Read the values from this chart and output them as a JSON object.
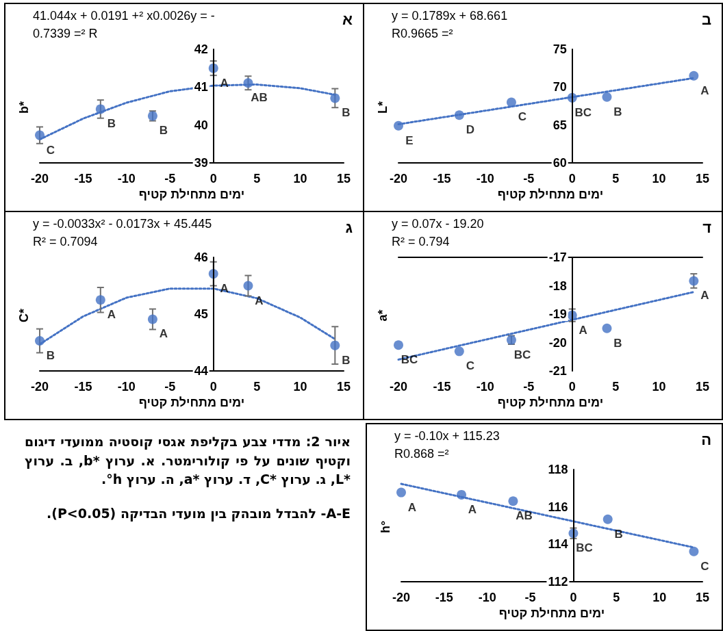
{
  "chart_data": [
    {
      "type": "scatter",
      "title": "א",
      "xlabel": "ימים מתחילת קטיף",
      "ylabel": "b*",
      "x": [
        -20,
        -13,
        -7,
        0,
        4,
        14
      ],
      "xlim": [
        -20,
        15
      ],
      "xticks": [
        -20,
        -15,
        -10,
        -5,
        0,
        5,
        10,
        15
      ],
      "ylim": [
        39,
        42
      ],
      "yticks": [
        39,
        40,
        41,
        42
      ],
      "marker": "circle",
      "annotations": [
        "41.044x + 0.0191 +² x0.0026y = -",
        "0.7339 =² R"
      ],
      "series": [
        {
          "type": "scatter",
          "color": "#4472c4",
          "values": [
            39.73,
            40.42,
            40.24,
            41.5,
            41.11,
            40.71
          ],
          "errors": [
            0.22,
            0.24,
            0.13,
            0.19,
            0.18,
            0.25
          ],
          "value_labels": [
            "C",
            "B",
            "B",
            "A",
            "AB",
            "B"
          ]
        },
        {
          "type": "line",
          "color": "#4472c4",
          "marker": "none",
          "line_style": "dotted",
          "x": [
            -20,
            -15,
            -10,
            -5,
            0,
            5,
            10,
            14
          ],
          "values": [
            39.62,
            40.17,
            40.59,
            40.89,
            41.04,
            41.07,
            40.97,
            40.8
          ]
        }
      ]
    },
    {
      "type": "scatter",
      "title": "ב",
      "xlabel": "ימים מתחילת קטיף",
      "ylabel": "L*",
      "x": [
        -20,
        -13,
        -7,
        0,
        4,
        14
      ],
      "xlim": [
        -20,
        15
      ],
      "xticks": [
        -20,
        -15,
        -10,
        -5,
        0,
        5,
        10,
        15
      ],
      "ylim": [
        60,
        75
      ],
      "yticks": [
        60,
        65,
        70,
        75
      ],
      "marker": "circle",
      "annotations": [
        "y = 0.1789x + 68.661",
        "R0.9665 =²"
      ],
      "series": [
        {
          "type": "scatter",
          "color": "#4472c4",
          "values": [
            64.9,
            66.3,
            68.0,
            68.6,
            68.7,
            71.5
          ],
          "value_labels": [
            "E",
            "D",
            "C",
            "BC",
            "B",
            "A"
          ]
        },
        {
          "type": "line",
          "color": "#4472c4",
          "marker": "none",
          "line_style": "dotted",
          "x": [
            -20,
            14
          ],
          "values": [
            65.1,
            71.2
          ]
        }
      ]
    },
    {
      "type": "scatter",
      "title": "ג",
      "xlabel": "ימים מתחילת קטיף",
      "ylabel": "C*",
      "x": [
        -20,
        -13,
        -7,
        0,
        4,
        14
      ],
      "xlim": [
        -20,
        15
      ],
      "xticks": [
        -20,
        -15,
        -10,
        -5,
        0,
        5,
        10,
        15
      ],
      "ylim": [
        44,
        46
      ],
      "yticks": [
        44,
        45,
        46
      ],
      "marker": "circle",
      "annotations": [
        "y = -0.0033x² - 0.0173x + 45.445",
        "R² = 0.7094"
      ],
      "series": [
        {
          "type": "scatter",
          "color": "#4472c4",
          "values": [
            44.53,
            45.25,
            44.91,
            45.71,
            45.5,
            44.45
          ],
          "errors": [
            0.21,
            0.22,
            0.18,
            0.21,
            0.18,
            0.33
          ],
          "value_labels": [
            "B",
            "A",
            "A",
            "A",
            "A",
            "B"
          ]
        },
        {
          "type": "line",
          "color": "#4472c4",
          "marker": "none",
          "line_style": "dotted",
          "x": [
            -20,
            -15,
            -10,
            -5,
            0,
            5,
            10,
            14
          ],
          "values": [
            44.47,
            44.96,
            45.29,
            45.45,
            45.45,
            45.28,
            44.94,
            44.56
          ]
        }
      ]
    },
    {
      "type": "scatter",
      "title": "ד",
      "xlabel": "ימים מתחילת קטיף",
      "ylabel": "a*",
      "x": [
        -20,
        -13,
        -7,
        0,
        4,
        14
      ],
      "xlim": [
        -20,
        15
      ],
      "xticks": [
        -20,
        -15,
        -10,
        -5,
        0,
        5,
        10,
        15
      ],
      "ylim": [
        -21,
        -17
      ],
      "yticks": [
        -21,
        -20,
        -19,
        -18,
        -17
      ],
      "marker": "circle",
      "annotations": [
        "y = 0.07x - 19.20",
        "R² = 0.794"
      ],
      "series": [
        {
          "type": "scatter",
          "color": "#4472c4",
          "values": [
            -20.09,
            -20.31,
            -19.91,
            -19.04,
            -19.5,
            -17.83
          ],
          "errors": [
            null,
            null,
            0.15,
            0.22,
            null,
            0.25
          ],
          "value_labels": [
            "BC",
            "C",
            "BC",
            "A",
            "B",
            "A"
          ]
        },
        {
          "type": "line",
          "color": "#4472c4",
          "marker": "none",
          "line_style": "dotted",
          "x": [
            -20,
            14
          ],
          "values": [
            -20.6,
            -18.22
          ]
        }
      ]
    },
    {
      "type": "scatter",
      "title": "ה",
      "xlabel": "ימים מתחילת קטיף",
      "ylabel": "h°",
      "x": [
        -20,
        -13,
        -7,
        0,
        4,
        14
      ],
      "xlim": [
        -20,
        15
      ],
      "xticks": [
        -20,
        -15,
        -10,
        -5,
        0,
        5,
        10,
        15
      ],
      "ylim": [
        112,
        118
      ],
      "yticks": [
        112,
        114,
        116,
        118
      ],
      "marker": "circle",
      "annotations": [
        "y = -0.10x + 115.23",
        "R0.868 =²"
      ],
      "series": [
        {
          "type": "scatter",
          "color": "#4472c4",
          "values": [
            116.77,
            116.65,
            116.31,
            114.59,
            115.34,
            113.62
          ],
          "errors": [
            null,
            null,
            null,
            0.28,
            null,
            null
          ],
          "value_labels": [
            "A",
            "A",
            "AB",
            "BC",
            "B",
            "C"
          ]
        },
        {
          "type": "line",
          "color": "#4472c4",
          "marker": "none",
          "line_style": "dotted",
          "x": [
            -20,
            14
          ],
          "values": [
            117.23,
            113.83
          ]
        }
      ]
    },
    {
      "type": "other",
      "annotations": [
        "איור 2: מדדי צבע בקליפת אגסי קוסטיה ממועדי דיגום וקטיף שונים על פי קולורימטר. א. ערוץ *b, ב. ערוץ *L, ג. ערוץ *C, ד. ערוץ *a, ה. ערוץ h°.",
        "A-E- להבדל מובהק בין מועדי הבדיקה (P<0.05)."
      ]
    }
  ]
}
